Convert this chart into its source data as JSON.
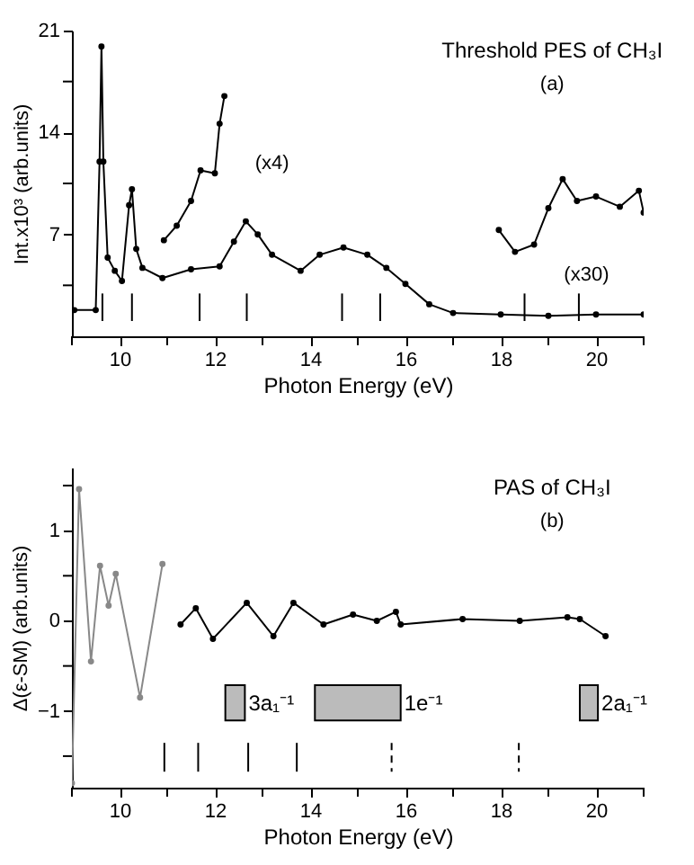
{
  "chart_data": [
    {
      "type": "line",
      "title": "Threshold PES of CH₃I",
      "xlabel": "Photon Energy (eV)",
      "ylabel": "Int.x10³ (arb.units)",
      "annotations": [
        "(a)",
        "(x4)",
        "(x30)"
      ],
      "series": [
        {
          "color": "#000000",
          "x": [
            9.05,
            9.5,
            9.58,
            9.62,
            9.66,
            9.75,
            9.9,
            10.05,
            10.2,
            10.26,
            10.35,
            10.48,
            10.9,
            11.5,
            12.1,
            12.4,
            12.65,
            12.9,
            13.2,
            13.8,
            14.2,
            14.7,
            15.2,
            15.6,
            16.0,
            16.5,
            17.0,
            18.0,
            19.0,
            20.0,
            21.0
          ],
          "values": [
            1.8,
            1.8,
            12,
            19.9,
            12,
            5.4,
            4.5,
            3.8,
            9,
            10.1,
            6,
            4.7,
            4.0,
            4.6,
            4.8,
            6.5,
            7.9,
            7.0,
            5.6,
            4.5,
            5.6,
            6.1,
            5.6,
            4.7,
            3.6,
            2.2,
            1.6,
            1.5,
            1.4,
            1.5,
            1.5
          ]
        },
        {
          "color": "#000000",
          "x": [
            10.93,
            11.2,
            11.5,
            11.7,
            12.0,
            12.1,
            12.2
          ],
          "values": [
            6.6,
            7.6,
            9.3,
            11.4,
            11.2,
            14.6,
            16.5
          ]
        },
        {
          "color": "#000000",
          "x": [
            17.96,
            18.3,
            18.7,
            19.0,
            19.3,
            19.6,
            20.0,
            20.5,
            20.9,
            21.0
          ],
          "values": [
            7.3,
            5.8,
            6.3,
            8.8,
            10.8,
            9.3,
            9.6,
            8.9,
            10.0,
            8.5
          ]
        }
      ],
      "xlim": [
        9,
        21
      ],
      "xticks": [
        {
          "value": 9,
          "label": null
        },
        10,
        {
          "value": 11,
          "label": null
        },
        12,
        {
          "value": 13,
          "label": null
        },
        14,
        {
          "value": 15,
          "label": null
        },
        16,
        {
          "value": 17,
          "label": null
        },
        18,
        {
          "value": 19,
          "label": null
        },
        20,
        {
          "value": 21,
          "label": null
        }
      ],
      "ylim": [
        0,
        21
      ],
      "yticks": [
        {
          "value": 3.5,
          "label": null
        },
        7,
        {
          "value": 10.5,
          "label": null
        },
        14,
        {
          "value": 17.5,
          "label": null
        },
        21
      ],
      "ref_lines": [
        {
          "axis": "x",
          "value": 9.64
        },
        {
          "axis": "x",
          "value": 10.26
        },
        {
          "axis": "x",
          "value": 11.68
        },
        {
          "axis": "x",
          "value": 12.67
        },
        {
          "axis": "x",
          "value": 14.67
        },
        {
          "axis": "x",
          "value": 15.47
        },
        {
          "axis": "x",
          "value": 18.5
        },
        {
          "axis": "x",
          "value": 19.64
        }
      ],
      "grid": false,
      "legend": false,
      "marker": "circle",
      "line_style": "solid"
    },
    {
      "type": "line",
      "title": "PAS of CH₃I",
      "xlabel": "Photon Energy (eV)",
      "ylabel": "Δ(ε-SM) (arb.units)",
      "annotations": [
        "(b)"
      ],
      "series": [
        {
          "color": "#888888",
          "x": [
            9.0,
            9.15,
            9.4,
            9.59,
            9.77,
            9.92,
            10.43,
            10.9
          ],
          "values": [
            -1.8,
            1.46,
            -0.45,
            0.61,
            0.17,
            0.52,
            -0.85,
            0.63
          ]
        },
        {
          "color": "#000000",
          "x": [
            11.28,
            11.6,
            11.96,
            12.67,
            13.23,
            13.65,
            14.28,
            14.9,
            15.4,
            15.8,
            15.9,
            17.2,
            18.4,
            19.4,
            19.66,
            20.2
          ],
          "values": [
            -0.04,
            0.14,
            -0.2,
            0.2,
            -0.17,
            0.2,
            -0.04,
            0.07,
            0.0,
            0.1,
            -0.04,
            0.02,
            0.0,
            0.04,
            0.02,
            -0.17
          ]
        }
      ],
      "xlim": [
        9,
        21
      ],
      "xticks": [
        {
          "value": 9,
          "label": null
        },
        10,
        {
          "value": 11,
          "label": null
        },
        12,
        {
          "value": 13,
          "label": null
        },
        14,
        {
          "value": 15,
          "label": null
        },
        16,
        {
          "value": 17,
          "label": null
        },
        18,
        {
          "value": 19,
          "label": null
        },
        20,
        {
          "value": 21,
          "label": null
        }
      ],
      "ylim": [
        -1.85,
        1.7
      ],
      "yticks": [
        {
          "value": -1.5,
          "label": null
        },
        -1,
        {
          "value": -0.5,
          "label": null
        },
        0,
        {
          "value": 0.5,
          "label": null
        },
        1,
        {
          "value": 1.5,
          "label": null
        }
      ],
      "ref_lines": [
        {
          "axis": "x",
          "value": 10.94
        },
        {
          "axis": "x",
          "value": 11.65
        },
        {
          "axis": "x",
          "value": 12.7
        },
        {
          "axis": "x",
          "value": 13.72
        },
        {
          "axis": "x",
          "value": 15.71,
          "line_style": "dashed"
        },
        {
          "axis": "x",
          "value": 18.38,
          "line_style": "dashed"
        }
      ],
      "bands": [
        {
          "axis": "x",
          "from": 12.22,
          "to": 12.63,
          "label": "3a₁⁻¹",
          "color": "#bbbbbb"
        },
        {
          "axis": "x",
          "from": 14.1,
          "to": 15.9,
          "label": "1e⁻¹",
          "color": "#bbbbbb"
        },
        {
          "axis": "x",
          "from": 19.66,
          "to": 20.04,
          "label": "2a₁⁻¹",
          "color": "#bbbbbb"
        }
      ],
      "grid": false,
      "legend": false,
      "marker": "circle",
      "line_style": "solid"
    }
  ]
}
